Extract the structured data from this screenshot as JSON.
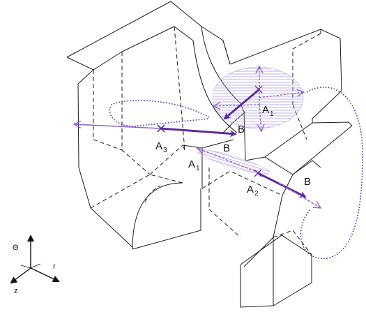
{
  "labels": {
    "a1_top": "A",
    "a1_top_sub": "1",
    "b_top": "B",
    "a3": "A",
    "a3_sub": "3",
    "b_mid": "B",
    "a1_mid": "A",
    "a1_mid_sub": "1",
    "a2": "A",
    "a2_sub": "2",
    "b_right": "B"
  },
  "axes": {
    "up": "Θ",
    "right": "r",
    "down": "z"
  },
  "colors": {
    "vector": "#5b2d9e",
    "vector_light": "#8a63c8",
    "hatch": "#b9a6e6",
    "dotted_path": "#2d2dbf",
    "edges": "#1a1a1a"
  }
}
